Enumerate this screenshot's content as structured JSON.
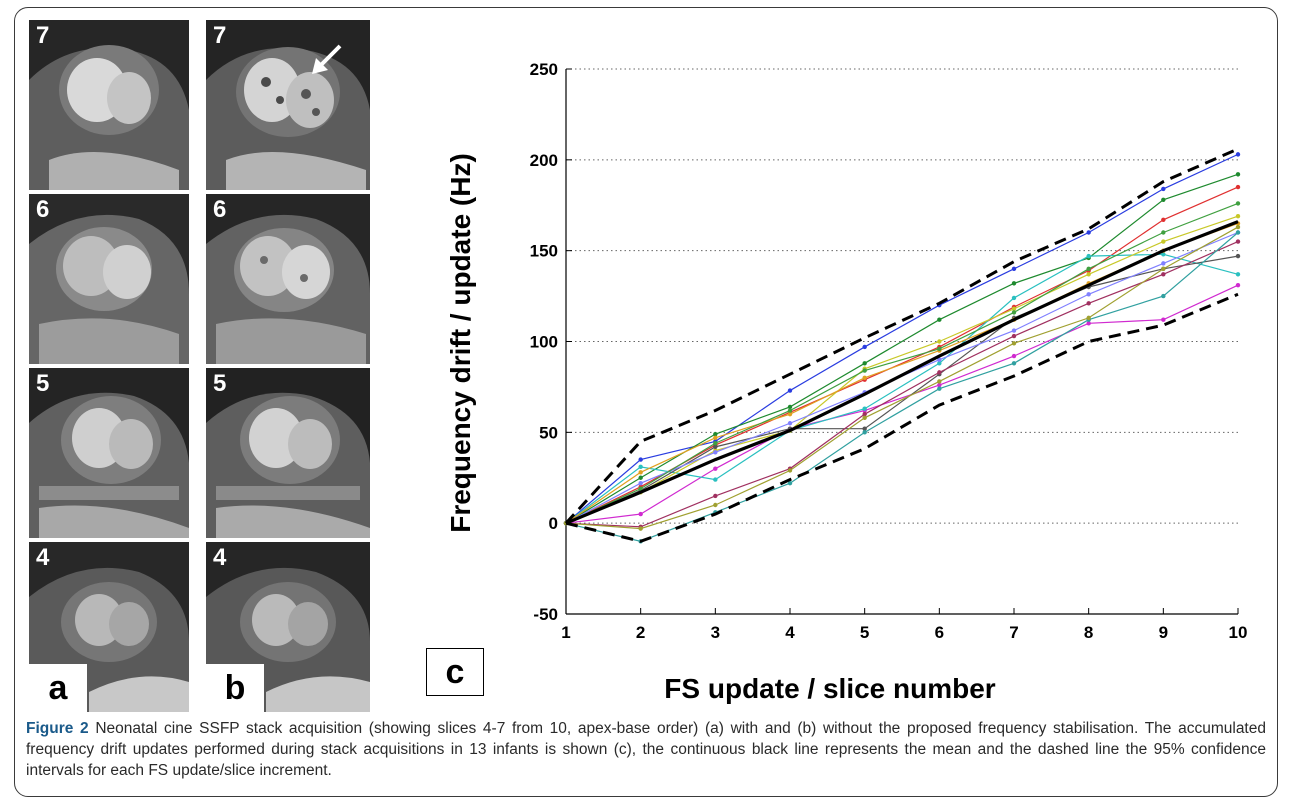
{
  "figure": {
    "caption_label": "Figure 2",
    "caption_text": " Neonatal cine SSFP stack acquisition (showing slices 4-7 from 10, apex-base order) (a) with and (b) without the proposed frequency stabilisation. The accumulated frequency drift updates performed during stack acquisitions in 13 infants is shown (c), the continuous black line represents the mean and the dashed line the 95% confidence intervals for each FS update/slice increment."
  },
  "panels": {
    "column_a": {
      "letter": "a",
      "slices": [
        "7",
        "6",
        "5",
        "4"
      ]
    },
    "column_b": {
      "letter": "b",
      "slices": [
        "7",
        "6",
        "5",
        "4"
      ]
    },
    "chart_letter": "c"
  },
  "colors": {
    "series": [
      "#2a3de0",
      "#1e8a2e",
      "#e03030",
      "#d02ad0",
      "#2ac0c0",
      "#c8c828",
      "#555555",
      "#e0a020",
      "#8080ff",
      "#40a040",
      "#a03060",
      "#30a0a0",
      "#a0a030"
    ],
    "mean": "#000000",
    "ci": "#000000"
  },
  "chart_data": {
    "type": "line",
    "xlabel": "FS update / slice number",
    "ylabel": "Frequency drift / update (Hz)",
    "xlim": [
      1,
      10
    ],
    "ylim": [
      -50,
      250
    ],
    "x": [
      1,
      2,
      3,
      4,
      5,
      6,
      7,
      8,
      9,
      10
    ],
    "xticks": [
      "1",
      "2",
      "3",
      "4",
      "5",
      "6",
      "7",
      "8",
      "9",
      "10"
    ],
    "yticks": [
      "-50",
      "0",
      "50",
      "100",
      "150",
      "200",
      "250"
    ],
    "grid": "horizontal dotted",
    "series": [
      {
        "values": [
          0,
          35,
          45,
          73,
          97,
          120,
          140,
          160,
          184,
          203
        ]
      },
      {
        "values": [
          0,
          25,
          49,
          64,
          88,
          112,
          132,
          146,
          178,
          192
        ]
      },
      {
        "values": [
          0,
          20,
          43,
          61,
          79,
          97,
          119,
          139,
          167,
          185
        ]
      },
      {
        "values": [
          0,
          5,
          30,
          52,
          62,
          76,
          92,
          110,
          112,
          131
        ]
      },
      {
        "values": [
          0,
          31,
          24,
          51,
          63,
          88,
          124,
          147,
          148,
          137
        ]
      },
      {
        "values": [
          0,
          17,
          40,
          51,
          85,
          100,
          118,
          137,
          155,
          169
        ]
      },
      {
        "values": [
          0,
          18,
          42,
          52,
          52,
          82,
          113,
          130,
          140,
          147
        ]
      },
      {
        "values": [
          0,
          28,
          47,
          60,
          80,
          95,
          112,
          132,
          150,
          165
        ]
      },
      {
        "values": [
          0,
          22,
          39,
          55,
          72,
          90,
          106,
          126,
          143,
          160
        ]
      },
      {
        "values": [
          0,
          19,
          44,
          62,
          84,
          96,
          116,
          140,
          160,
          176
        ]
      },
      {
        "values": [
          0,
          -2,
          15,
          30,
          60,
          83,
          103,
          121,
          137,
          155
        ]
      },
      {
        "values": [
          0,
          -10,
          6,
          22,
          50,
          74,
          88,
          112,
          125,
          160
        ]
      },
      {
        "values": [
          0,
          -3,
          10,
          29,
          58,
          78,
          99,
          113,
          140,
          163
        ]
      }
    ],
    "mean": [
      0,
      17,
      35,
      51,
      71,
      92,
      112,
      131,
      150,
      166
    ],
    "ci_upper": [
      0,
      45,
      62,
      82,
      102,
      121,
      144,
      162,
      188,
      206
    ],
    "ci_lower": [
      0,
      -10,
      5,
      24,
      41,
      65,
      81,
      100,
      109,
      126
    ]
  }
}
